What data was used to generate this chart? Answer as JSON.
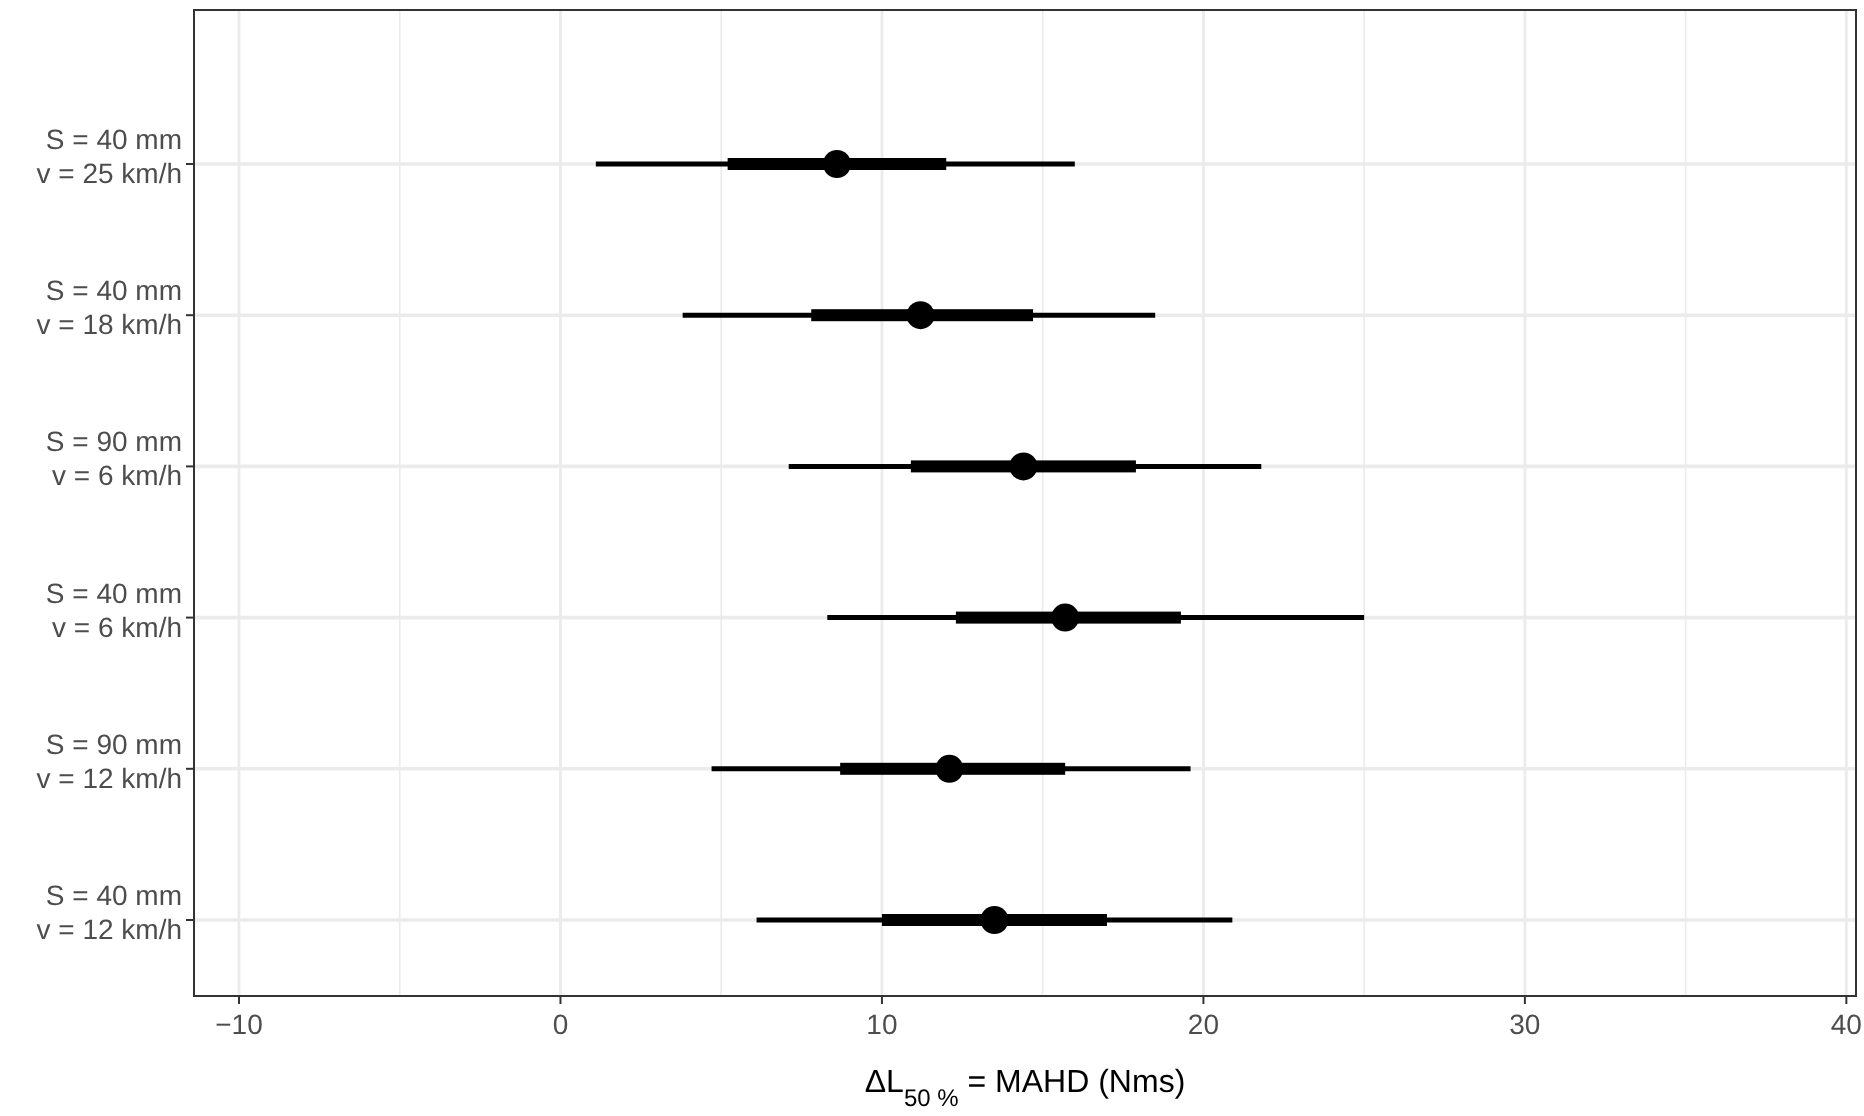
{
  "chart_data": {
    "type": "box",
    "orientation": "horizontal",
    "xlabel": "ΔL$_{50 %}$ = MAHD (Nms)",
    "categories": [
      "S = 40 mm\nv = 25 km/h",
      "S = 40 mm\nv = 18 km/h",
      "S = 90 mm\nv = 6 km/h",
      "S = 40 mm\nv = 6 km/h",
      "S = 90 mm\nv = 12 km/h",
      "S = 40 mm\nv = 12 km/h"
    ],
    "boxes": [
      {
        "low": 1.1,
        "q1": 5.2,
        "median": 8.6,
        "q3": 12.0,
        "high": 16.0
      },
      {
        "low": 3.8,
        "q1": 7.8,
        "median": 11.2,
        "q3": 14.7,
        "high": 18.5
      },
      {
        "low": 7.1,
        "q1": 10.9,
        "median": 14.4,
        "q3": 17.9,
        "high": 21.8
      },
      {
        "low": 8.3,
        "q1": 12.3,
        "median": 15.7,
        "q3": 19.3,
        "high": 25.0
      },
      {
        "low": 4.7,
        "q1": 8.7,
        "median": 12.1,
        "q3": 15.7,
        "high": 19.6
      },
      {
        "low": 6.1,
        "q1": 10.0,
        "median": 13.5,
        "q3": 17.0,
        "high": 20.9
      }
    ],
    "xlim": [
      -11.4,
      40.3
    ],
    "xticks": [
      -10,
      0,
      10,
      20,
      30,
      40
    ],
    "grid": true
  }
}
